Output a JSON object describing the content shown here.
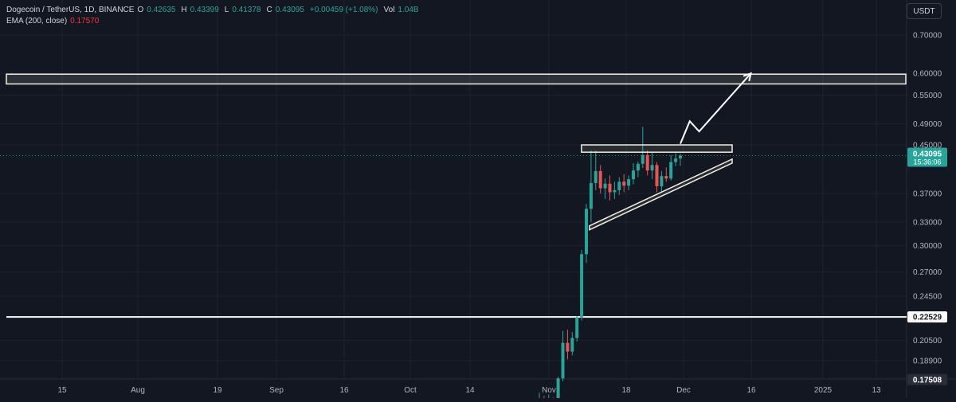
{
  "header": {
    "symbol": "Dogecoin / TetherUS, 1D, BINANCE",
    "ohlc": [
      {
        "k": "O",
        "v": "0.42635"
      },
      {
        "k": "H",
        "v": "0.43399"
      },
      {
        "k": "L",
        "v": "0.41378"
      },
      {
        "k": "C",
        "v": "0.43095"
      }
    ],
    "change": "+0.00459 (+1.08%)",
    "volume_label": "Vol",
    "volume_value": "1.04B",
    "ema_label": "EMA (200, close)",
    "ema_value": "0.17570",
    "currency": "USDT"
  },
  "colors": {
    "background": "#131722",
    "up": "#26a69a",
    "down": "#ef5350",
    "grid": "#1f2330",
    "text": "#b2b5be",
    "price_tag": "#26a69a",
    "white": "#ffffff"
  },
  "chart_data": {
    "type": "candlestick",
    "y_scale": "log",
    "y_ticks": [
      "0.70000",
      "0.60000",
      "0.55000",
      "0.49000",
      "0.45000",
      "0.37000",
      "0.33000",
      "0.30000",
      "0.27000",
      "0.24500",
      "0.20500",
      "0.18900"
    ],
    "x_ticks": [
      "15",
      "Aug",
      "19",
      "Sep",
      "16",
      "Oct",
      "14",
      "Nov",
      "18",
      "Dec",
      "16",
      "2025",
      "13"
    ],
    "current_price": {
      "value": "0.43095",
      "countdown": "15:36:06"
    },
    "price_labels": [
      {
        "value": "0.22529",
        "style": "white"
      },
      {
        "value": "0.17508",
        "style": "dark"
      }
    ],
    "candles": [
      {
        "date": "2024-11-01",
        "o": 0.157,
        "h": 0.166,
        "l": 0.153,
        "c": 0.161
      },
      {
        "date": "2024-11-02",
        "o": 0.161,
        "h": 0.164,
        "l": 0.155,
        "c": 0.157
      },
      {
        "date": "2024-11-03",
        "o": 0.157,
        "h": 0.165,
        "l": 0.15,
        "c": 0.159
      },
      {
        "date": "2024-11-04",
        "o": 0.159,
        "h": 0.163,
        "l": 0.153,
        "c": 0.156
      },
      {
        "date": "2024-11-05",
        "o": 0.156,
        "h": 0.177,
        "l": 0.155,
        "c": 0.176
      },
      {
        "date": "2024-11-06",
        "o": 0.176,
        "h": 0.213,
        "l": 0.174,
        "c": 0.203
      },
      {
        "date": "2024-11-07",
        "o": 0.203,
        "h": 0.214,
        "l": 0.19,
        "c": 0.196
      },
      {
        "date": "2024-11-08",
        "o": 0.196,
        "h": 0.212,
        "l": 0.193,
        "c": 0.207
      },
      {
        "date": "2024-11-09",
        "o": 0.207,
        "h": 0.226,
        "l": 0.204,
        "c": 0.225
      },
      {
        "date": "2024-11-10",
        "o": 0.225,
        "h": 0.295,
        "l": 0.222,
        "c": 0.29
      },
      {
        "date": "2024-11-11",
        "o": 0.29,
        "h": 0.355,
        "l": 0.28,
        "c": 0.348
      },
      {
        "date": "2024-11-12",
        "o": 0.348,
        "h": 0.44,
        "l": 0.33,
        "c": 0.386
      },
      {
        "date": "2024-11-13",
        "o": 0.386,
        "h": 0.44,
        "l": 0.375,
        "c": 0.405
      },
      {
        "date": "2024-11-14",
        "o": 0.405,
        "h": 0.415,
        "l": 0.37,
        "c": 0.378
      },
      {
        "date": "2024-11-15",
        "o": 0.378,
        "h": 0.393,
        "l": 0.362,
        "c": 0.385
      },
      {
        "date": "2024-11-16",
        "o": 0.385,
        "h": 0.398,
        "l": 0.36,
        "c": 0.372
      },
      {
        "date": "2024-11-17",
        "o": 0.372,
        "h": 0.388,
        "l": 0.362,
        "c": 0.375
      },
      {
        "date": "2024-11-18",
        "o": 0.375,
        "h": 0.395,
        "l": 0.368,
        "c": 0.388
      },
      {
        "date": "2024-11-19",
        "o": 0.388,
        "h": 0.4,
        "l": 0.372,
        "c": 0.382
      },
      {
        "date": "2024-11-20",
        "o": 0.382,
        "h": 0.398,
        "l": 0.375,
        "c": 0.392
      },
      {
        "date": "2024-11-21",
        "o": 0.392,
        "h": 0.418,
        "l": 0.384,
        "c": 0.406
      },
      {
        "date": "2024-11-22",
        "o": 0.406,
        "h": 0.421,
        "l": 0.395,
        "c": 0.417
      },
      {
        "date": "2024-11-23",
        "o": 0.417,
        "h": 0.484,
        "l": 0.41,
        "c": 0.432
      },
      {
        "date": "2024-11-24",
        "o": 0.432,
        "h": 0.44,
        "l": 0.398,
        "c": 0.406
      },
      {
        "date": "2024-11-25",
        "o": 0.406,
        "h": 0.437,
        "l": 0.392,
        "c": 0.415
      },
      {
        "date": "2024-11-26",
        "o": 0.415,
        "h": 0.42,
        "l": 0.372,
        "c": 0.381
      },
      {
        "date": "2024-11-27",
        "o": 0.381,
        "h": 0.405,
        "l": 0.372,
        "c": 0.397
      },
      {
        "date": "2024-11-28",
        "o": 0.397,
        "h": 0.411,
        "l": 0.388,
        "c": 0.393
      },
      {
        "date": "2024-11-29",
        "o": 0.393,
        "h": 0.432,
        "l": 0.39,
        "c": 0.42
      },
      {
        "date": "2024-11-30",
        "o": 0.42,
        "h": 0.435,
        "l": 0.413,
        "c": 0.426
      },
      {
        "date": "2024-12-01",
        "o": 0.42635,
        "h": 0.43399,
        "l": 0.41378,
        "c": 0.43095
      }
    ],
    "annotations": {
      "resistance_zone": {
        "from": 0.575,
        "to": 0.598
      },
      "support_line": 0.22529,
      "triangle_top": {
        "from_date": "2024-11-12",
        "to_date": "2024-12-11",
        "low": 0.437,
        "high": 0.45
      },
      "triangle_bottom": {
        "from_date": "2024-11-12",
        "from_price": 0.325,
        "to_date": "2024-12-11",
        "to_price": 0.425
      },
      "projection_arrow": [
        {
          "date": "2024-12-01",
          "price": 0.452
        },
        {
          "date": "2024-12-03",
          "price": 0.495
        },
        {
          "date": "2024-12-05",
          "price": 0.475
        },
        {
          "date": "2024-12-16",
          "price": 0.6
        }
      ]
    }
  }
}
